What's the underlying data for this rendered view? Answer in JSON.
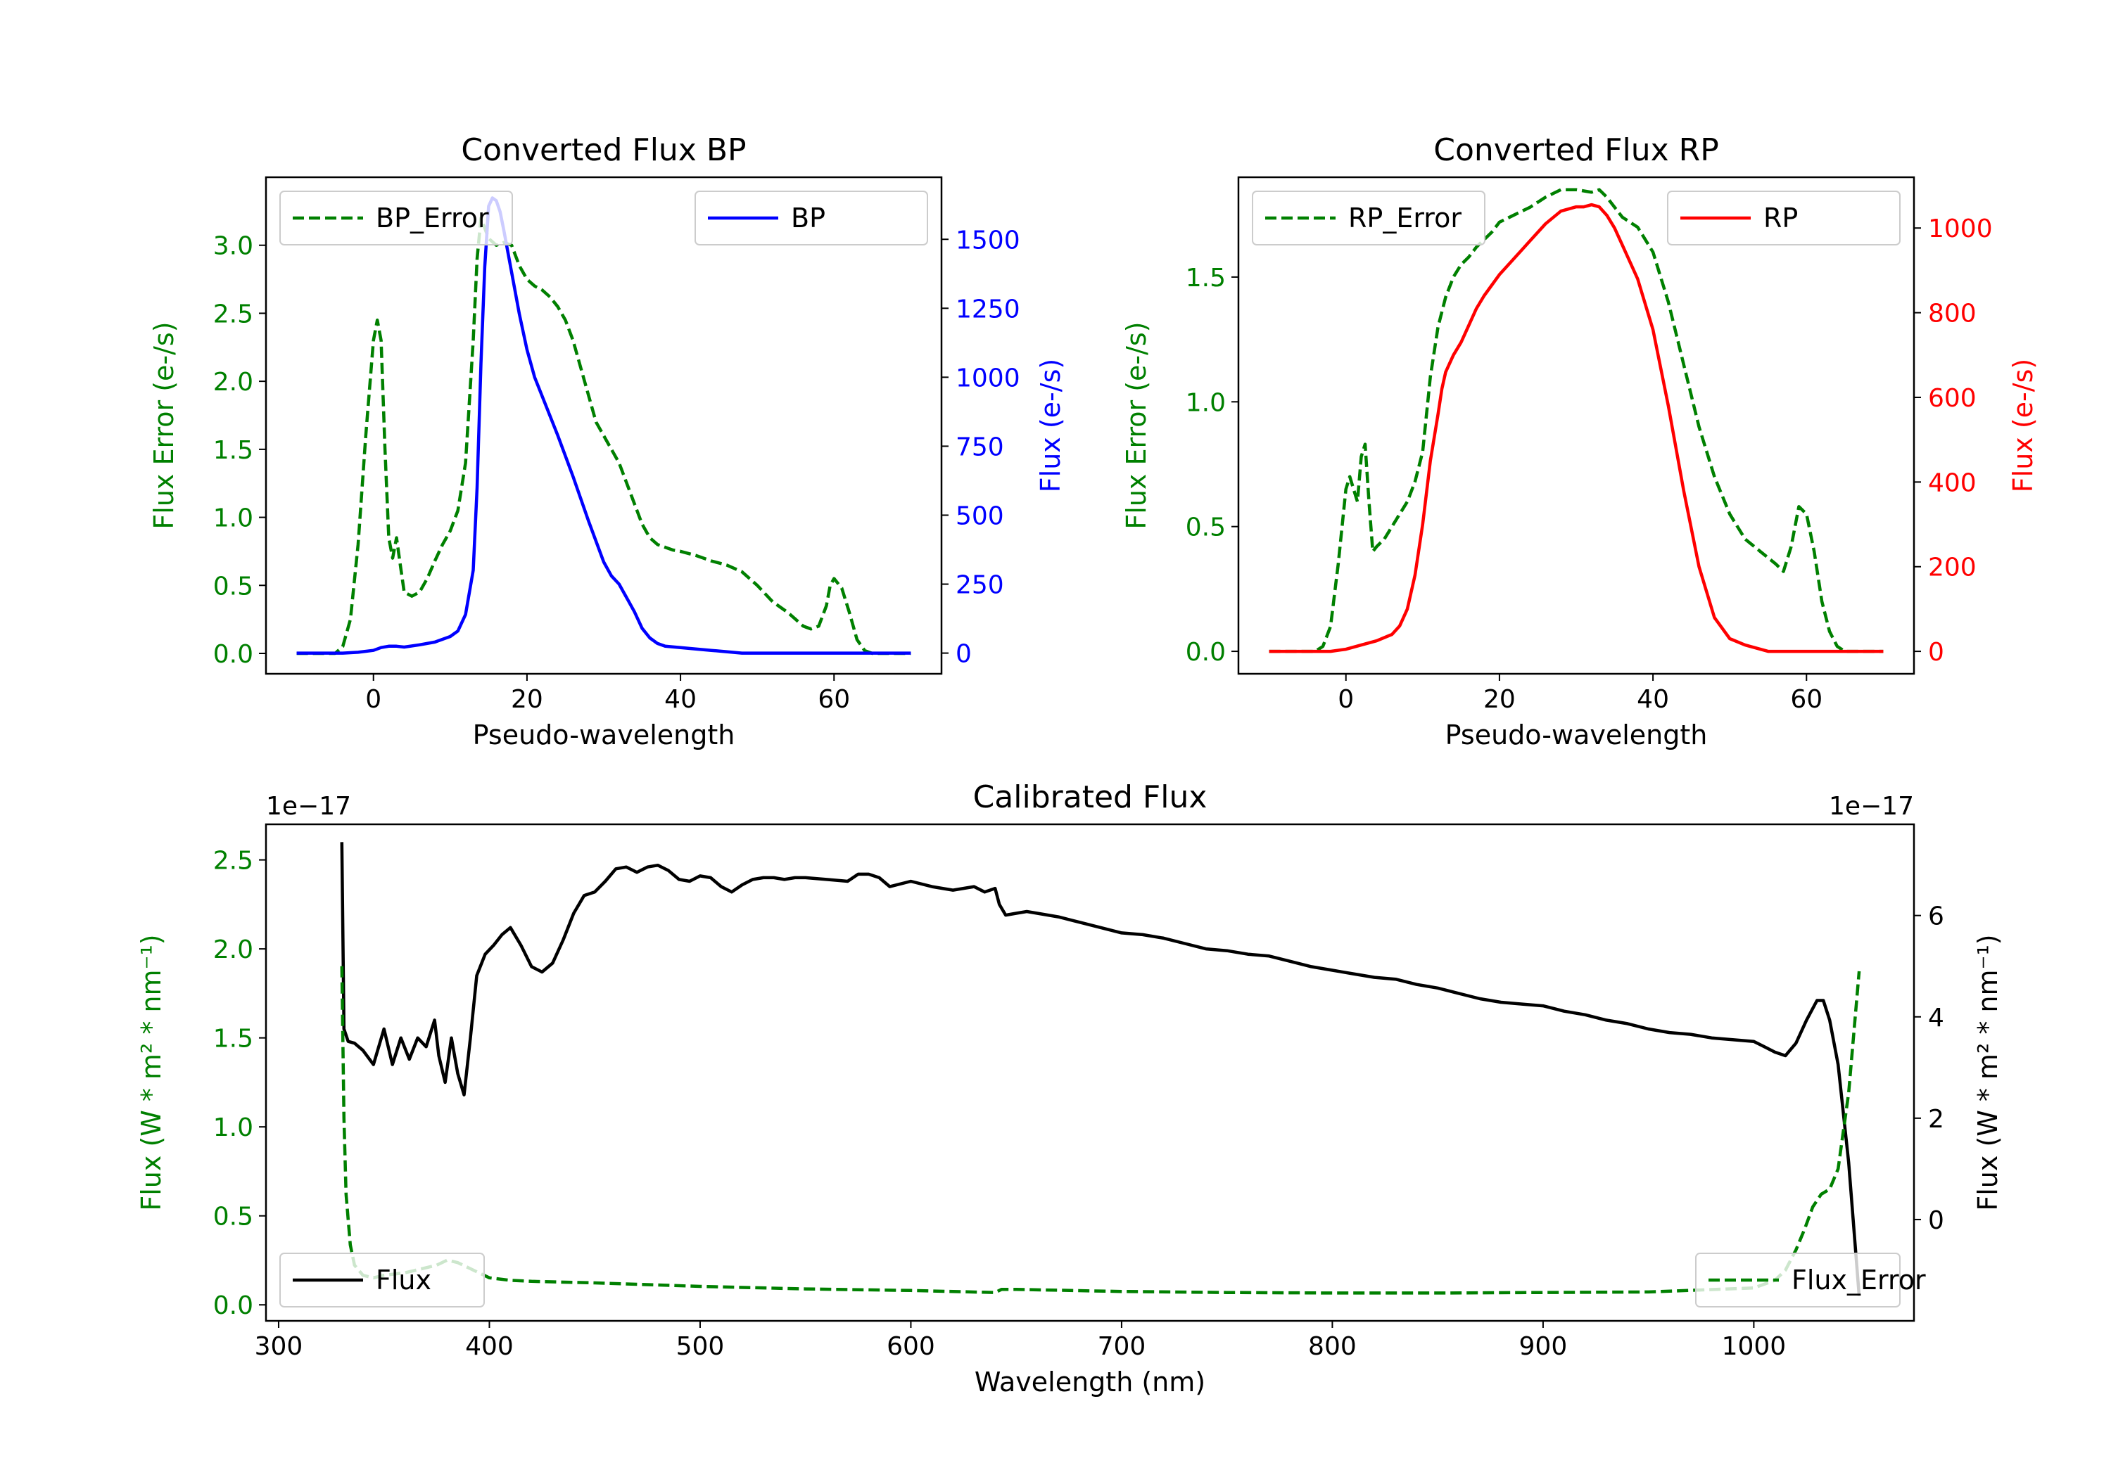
{
  "chart_data": [
    {
      "id": "bp",
      "type": "line",
      "title": "Converted Flux BP",
      "xlabel": "Pseudo-wavelength",
      "ylabel_left": "Flux Error (e-/s)",
      "ylabel_right": "Flux (e-/s)",
      "xlim": [
        -14,
        74
      ],
      "ylim_left": [
        -0.15,
        3.5
      ],
      "ylim_right": [
        -75,
        1725
      ],
      "xticks": [
        0,
        20,
        40,
        60
      ],
      "yticks_left": [
        0.0,
        0.5,
        1.0,
        1.5,
        2.0,
        2.5,
        3.0
      ],
      "ytick_labels_left": [
        "0.0",
        "0.5",
        "1.0",
        "1.5",
        "2.0",
        "2.5",
        "3.0"
      ],
      "yticks_right": [
        0,
        250,
        500,
        750,
        1000,
        1250,
        1500
      ],
      "ytick_labels_right": [
        "0",
        "250",
        "500",
        "750",
        "1000",
        "1250",
        "1500"
      ],
      "left_color": "#008000",
      "right_color": "#0000ff",
      "legend_left": "BP_Error",
      "legend_right": "BP",
      "legend_left_loc": "upper left",
      "legend_right_loc": "upper right",
      "series": [
        {
          "name": "BP_Error",
          "axis": "left",
          "style": "dashed",
          "color": "#008000",
          "x": [
            -10,
            -5,
            -4,
            -3,
            -2,
            -1,
            0,
            0.5,
            1,
            1.5,
            2,
            2.5,
            3,
            3.5,
            4,
            5,
            6,
            7,
            8,
            9,
            10,
            11,
            12,
            13,
            13.5,
            14,
            15,
            16,
            17,
            18,
            19,
            20,
            21,
            22,
            23,
            24,
            25,
            26,
            27,
            28,
            29,
            30,
            31,
            32,
            33,
            34,
            35,
            36,
            37,
            38,
            39,
            40,
            42,
            44,
            46,
            48,
            50,
            52,
            54,
            55,
            56,
            57,
            58,
            59,
            59.5,
            60,
            61,
            62,
            63,
            64,
            65,
            67,
            70
          ],
          "y": [
            0,
            0,
            0.05,
            0.25,
            0.8,
            1.6,
            2.3,
            2.45,
            2.3,
            1.5,
            0.85,
            0.7,
            0.85,
            0.65,
            0.45,
            0.42,
            0.45,
            0.55,
            0.68,
            0.8,
            0.9,
            1.05,
            1.4,
            2.3,
            2.9,
            3.2,
            3.05,
            3.0,
            3.02,
            3.0,
            2.85,
            2.75,
            2.7,
            2.67,
            2.62,
            2.55,
            2.45,
            2.3,
            2.1,
            1.9,
            1.7,
            1.6,
            1.5,
            1.4,
            1.25,
            1.1,
            0.95,
            0.85,
            0.8,
            0.78,
            0.76,
            0.75,
            0.72,
            0.68,
            0.65,
            0.6,
            0.5,
            0.38,
            0.3,
            0.25,
            0.2,
            0.18,
            0.2,
            0.35,
            0.5,
            0.55,
            0.48,
            0.3,
            0.1,
            0.02,
            0.0,
            0.0,
            0.0
          ]
        },
        {
          "name": "BP",
          "axis": "right",
          "style": "solid",
          "color": "#0000ff",
          "x": [
            -10,
            -4,
            -2,
            0,
            1,
            2,
            3,
            4,
            6,
            8,
            10,
            11,
            12,
            13,
            13.5,
            14,
            14.5,
            15,
            15.5,
            16,
            16.5,
            17,
            18,
            19,
            20,
            21,
            22,
            24,
            26,
            28,
            30,
            31,
            32,
            33,
            34,
            35,
            36,
            37,
            38,
            40,
            42,
            44,
            46,
            48,
            50,
            52,
            54,
            56,
            58,
            60,
            62,
            65,
            70
          ],
          "y": [
            0,
            0,
            3,
            10,
            20,
            25,
            25,
            22,
            30,
            40,
            60,
            80,
            140,
            300,
            600,
            1050,
            1400,
            1620,
            1650,
            1640,
            1600,
            1530,
            1380,
            1230,
            1100,
            1000,
            930,
            790,
            640,
            480,
            330,
            280,
            250,
            200,
            150,
            90,
            55,
            35,
            25,
            20,
            15,
            10,
            5,
            0,
            0,
            0,
            0,
            0,
            0,
            0,
            0,
            0,
            0
          ]
        }
      ]
    },
    {
      "id": "rp",
      "type": "line",
      "title": "Converted Flux RP",
      "xlabel": "Pseudo-wavelength",
      "ylabel_left": "Flux Error (e-/s)",
      "ylabel_right": "Flux (e-/s)",
      "xlim": [
        -14,
        74
      ],
      "ylim_left": [
        -0.09,
        1.9
      ],
      "ylim_right": [
        -53,
        1120
      ],
      "xticks": [
        0,
        20,
        40,
        60
      ],
      "yticks_left": [
        0.0,
        0.5,
        1.0,
        1.5
      ],
      "ytick_labels_left": [
        "0.0",
        "0.5",
        "1.0",
        "1.5"
      ],
      "yticks_right": [
        0,
        200,
        400,
        600,
        800,
        1000
      ],
      "ytick_labels_right": [
        "0",
        "200",
        "400",
        "600",
        "800",
        "1000"
      ],
      "left_color": "#008000",
      "right_color": "#ff0000",
      "legend_left": "RP_Error",
      "legend_right": "RP",
      "legend_left_loc": "upper left",
      "legend_right_loc": "upper right",
      "series": [
        {
          "name": "RP_Error",
          "axis": "left",
          "style": "dashed",
          "color": "#008000",
          "x": [
            -10,
            -4,
            -3,
            -2,
            -1,
            0,
            0.5,
            1,
            1.5,
            2,
            2.5,
            3,
            3.5,
            4,
            5,
            6,
            7,
            8,
            9,
            10,
            11,
            12,
            13,
            14,
            15,
            16,
            17,
            18,
            19,
            20,
            22,
            24,
            26,
            28,
            30,
            32,
            33,
            34,
            35,
            36,
            37,
            38,
            40,
            42,
            44,
            46,
            48,
            50,
            52,
            54,
            56,
            57,
            58,
            59,
            60,
            61,
            62,
            63,
            64,
            65,
            67,
            70
          ],
          "y": [
            0,
            0,
            0.02,
            0.1,
            0.35,
            0.65,
            0.7,
            0.65,
            0.6,
            0.78,
            0.83,
            0.6,
            0.4,
            0.42,
            0.45,
            0.5,
            0.55,
            0.6,
            0.68,
            0.8,
            1.1,
            1.3,
            1.42,
            1.5,
            1.55,
            1.58,
            1.62,
            1.65,
            1.68,
            1.72,
            1.75,
            1.78,
            1.82,
            1.85,
            1.85,
            1.84,
            1.85,
            1.82,
            1.78,
            1.74,
            1.72,
            1.7,
            1.6,
            1.4,
            1.15,
            0.9,
            0.7,
            0.55,
            0.45,
            0.4,
            0.35,
            0.32,
            0.42,
            0.58,
            0.55,
            0.4,
            0.2,
            0.08,
            0.02,
            0.0,
            0.0,
            0.0
          ]
        },
        {
          "name": "RP",
          "axis": "right",
          "style": "solid",
          "color": "#ff0000",
          "x": [
            -10,
            -2,
            0,
            2,
            4,
            6,
            7,
            8,
            9,
            10,
            11,
            12,
            12.5,
            13,
            14,
            15,
            16,
            17,
            18,
            20,
            22,
            24,
            26,
            28,
            30,
            31,
            32,
            33,
            34,
            35,
            36,
            38,
            40,
            42,
            44,
            46,
            48,
            50,
            52,
            53,
            54,
            55,
            56,
            58,
            60,
            62,
            65,
            70
          ],
          "y": [
            0,
            0,
            5,
            15,
            25,
            40,
            60,
            100,
            180,
            300,
            450,
            560,
            620,
            660,
            700,
            730,
            770,
            810,
            840,
            890,
            930,
            970,
            1010,
            1040,
            1050,
            1050,
            1055,
            1050,
            1030,
            1000,
            960,
            880,
            760,
            580,
            380,
            200,
            80,
            30,
            15,
            10,
            5,
            0,
            0,
            0,
            0,
            0,
            0,
            0
          ]
        }
      ]
    },
    {
      "id": "calibrated",
      "type": "line",
      "title": "Calibrated Flux",
      "xlabel": "Wavelength (nm)",
      "ylabel_left": "Flux (W * m² * nm⁻¹)",
      "ylabel_right": "Flux (W * m² * nm⁻¹)",
      "offset_left": "1e−17",
      "offset_right": "1e−17",
      "xlim": [
        294,
        1076
      ],
      "ylim_left": [
        -0.09,
        2.7
      ],
      "ylim_right": [
        -2.0,
        7.8
      ],
      "xticks": [
        300,
        400,
        500,
        600,
        700,
        800,
        900,
        1000
      ],
      "yticks_left": [
        0.0,
        0.5,
        1.0,
        1.5,
        2.0,
        2.5
      ],
      "ytick_labels_left": [
        "0.0",
        "0.5",
        "1.0",
        "1.5",
        "2.0",
        "2.5"
      ],
      "yticks_right": [
        0,
        2,
        4,
        6
      ],
      "ytick_labels_right": [
        "0",
        "2",
        "4",
        "6"
      ],
      "left_color": "#008000",
      "right_color": "#000000",
      "legend_left": "Flux",
      "legend_right": "Flux_Error",
      "legend_left_loc": "lower left",
      "legend_right_loc": "lower right",
      "series": [
        {
          "name": "Flux",
          "axis": "left",
          "style": "solid",
          "color": "#000000",
          "x": [
            330,
            331,
            333,
            336,
            340,
            345,
            350,
            354,
            358,
            362,
            366,
            370,
            374,
            376,
            379,
            382,
            385,
            388,
            391,
            394,
            398,
            402,
            406,
            410,
            415,
            420,
            425,
            430,
            435,
            440,
            445,
            450,
            455,
            460,
            465,
            470,
            475,
            480,
            485,
            490,
            495,
            500,
            505,
            510,
            515,
            520,
            525,
            530,
            535,
            540,
            545,
            550,
            560,
            570,
            575,
            580,
            585,
            590,
            600,
            610,
            620,
            630,
            635,
            640,
            642,
            645,
            650,
            655,
            660,
            670,
            680,
            690,
            700,
            710,
            720,
            730,
            740,
            750,
            760,
            770,
            780,
            790,
            800,
            810,
            820,
            830,
            840,
            850,
            860,
            870,
            880,
            890,
            900,
            910,
            920,
            930,
            940,
            950,
            960,
            970,
            980,
            990,
            1000,
            1005,
            1010,
            1015,
            1020,
            1025,
            1030,
            1033,
            1036,
            1040,
            1045,
            1050
          ],
          "y": [
            2.6,
            1.55,
            1.48,
            1.47,
            1.43,
            1.35,
            1.55,
            1.35,
            1.5,
            1.38,
            1.5,
            1.45,
            1.6,
            1.4,
            1.25,
            1.5,
            1.3,
            1.18,
            1.5,
            1.85,
            1.97,
            2.02,
            2.08,
            2.12,
            2.02,
            1.9,
            1.87,
            1.92,
            2.05,
            2.2,
            2.3,
            2.32,
            2.38,
            2.45,
            2.46,
            2.43,
            2.46,
            2.47,
            2.44,
            2.39,
            2.38,
            2.41,
            2.4,
            2.35,
            2.32,
            2.36,
            2.39,
            2.4,
            2.4,
            2.39,
            2.4,
            2.4,
            2.39,
            2.38,
            2.42,
            2.42,
            2.4,
            2.35,
            2.38,
            2.35,
            2.33,
            2.35,
            2.32,
            2.34,
            2.25,
            2.19,
            2.2,
            2.21,
            2.2,
            2.18,
            2.15,
            2.12,
            2.09,
            2.08,
            2.06,
            2.03,
            2.0,
            1.99,
            1.97,
            1.96,
            1.93,
            1.9,
            1.88,
            1.86,
            1.84,
            1.83,
            1.8,
            1.78,
            1.75,
            1.72,
            1.7,
            1.69,
            1.68,
            1.65,
            1.63,
            1.6,
            1.58,
            1.55,
            1.53,
            1.52,
            1.5,
            1.49,
            1.48,
            1.45,
            1.42,
            1.4,
            1.47,
            1.6,
            1.71,
            1.71,
            1.6,
            1.35,
            0.8,
            0.05
          ]
        },
        {
          "name": "Flux_Error",
          "axis": "right",
          "style": "dashed",
          "color": "#008000",
          "x": [
            330,
            331,
            332,
            334,
            336,
            340,
            345,
            350,
            360,
            370,
            375,
            380,
            385,
            390,
            395,
            400,
            410,
            420,
            450,
            500,
            550,
            600,
            640,
            643,
            650,
            700,
            750,
            800,
            850,
            900,
            950,
            1000,
            1010,
            1015,
            1020,
            1024,
            1028,
            1032,
            1036,
            1040,
            1045,
            1050
          ],
          "y": [
            5.0,
            2.0,
            0.5,
            -0.5,
            -0.9,
            -1.1,
            -1.15,
            -1.1,
            -1.05,
            -0.95,
            -0.9,
            -0.8,
            -0.85,
            -0.95,
            -1.05,
            -1.15,
            -1.2,
            -1.22,
            -1.25,
            -1.32,
            -1.37,
            -1.4,
            -1.44,
            -1.38,
            -1.38,
            -1.42,
            -1.44,
            -1.45,
            -1.45,
            -1.44,
            -1.43,
            -1.35,
            -1.2,
            -1.0,
            -0.6,
            -0.2,
            0.25,
            0.5,
            0.6,
            1.0,
            2.5,
            4.9
          ]
        }
      ]
    }
  ]
}
